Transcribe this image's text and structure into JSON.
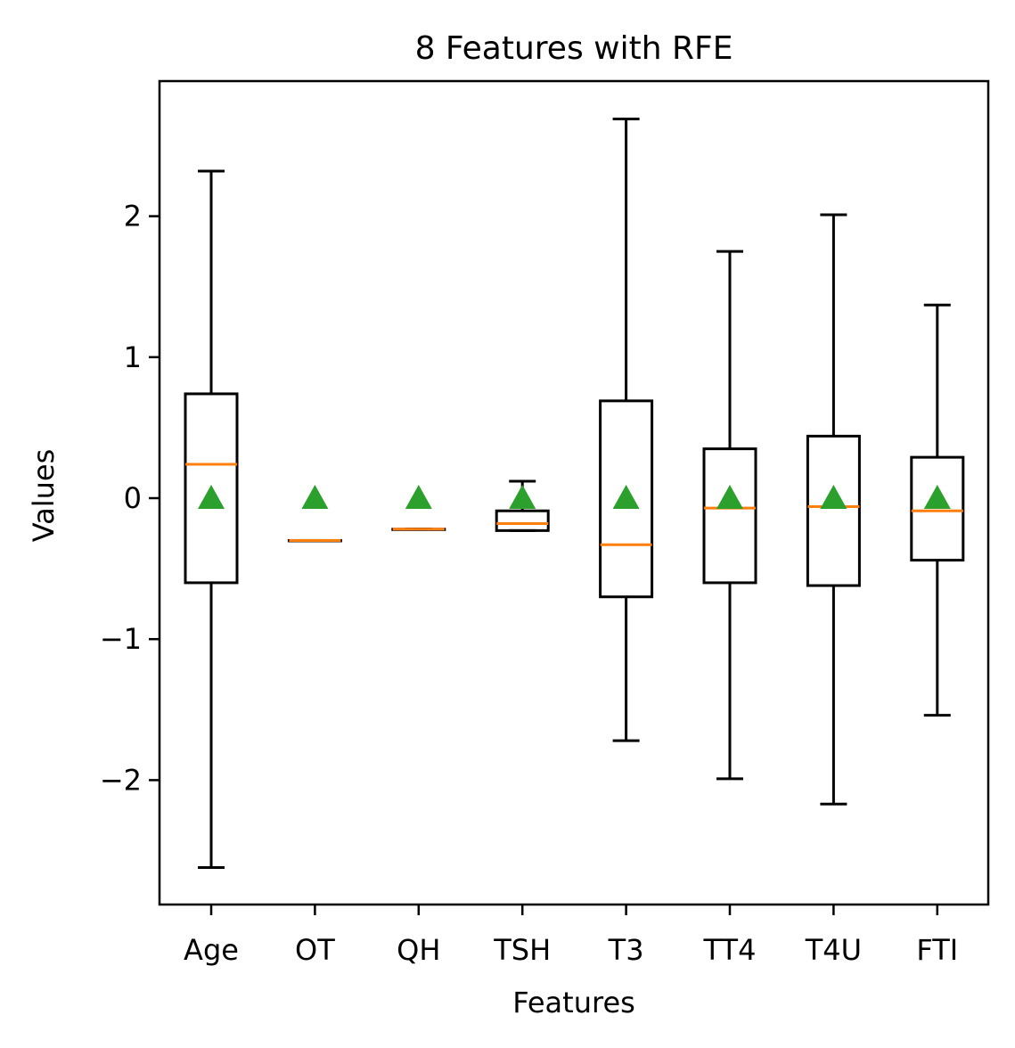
{
  "chart_data": {
    "type": "box",
    "title": "8 Features with RFE",
    "xlabel": "Features",
    "ylabel": "Values",
    "categories": [
      "Age",
      "OT",
      "QH",
      "TSH",
      "T3",
      "TT4",
      "T4U",
      "FTI"
    ],
    "y_ticks": [
      -2,
      -1,
      0,
      1,
      2
    ],
    "y_tick_labels": [
      "−2",
      "−1",
      "0",
      "1",
      "2"
    ],
    "ylim": [
      -2.9,
      2.97
    ],
    "boxes": [
      {
        "label": "Age",
        "whisker_low": -2.62,
        "q1": -0.6,
        "median": 0.24,
        "q3": 0.74,
        "whisker_high": 2.32,
        "mean": 0.0
      },
      {
        "label": "OT",
        "whisker_low": -0.3,
        "q1": -0.3,
        "median": -0.3,
        "q3": -0.3,
        "whisker_high": -0.3,
        "mean": 0.0
      },
      {
        "label": "QH",
        "whisker_low": -0.22,
        "q1": -0.22,
        "median": -0.22,
        "q3": -0.22,
        "whisker_high": -0.22,
        "mean": 0.0
      },
      {
        "label": "TSH",
        "whisker_low": -0.23,
        "q1": -0.23,
        "median": -0.18,
        "q3": -0.09,
        "whisker_high": 0.12,
        "mean": 0.0
      },
      {
        "label": "T3",
        "whisker_low": -1.72,
        "q1": -0.7,
        "median": -0.33,
        "q3": 0.69,
        "whisker_high": 2.69,
        "mean": 0.0
      },
      {
        "label": "TT4",
        "whisker_low": -1.99,
        "q1": -0.6,
        "median": -0.07,
        "q3": 0.35,
        "whisker_high": 1.75,
        "mean": 0.0
      },
      {
        "label": "T4U",
        "whisker_low": -2.17,
        "q1": -0.62,
        "median": -0.06,
        "q3": 0.44,
        "whisker_high": 2.01,
        "mean": 0.0
      },
      {
        "label": "FTI",
        "whisker_low": -1.54,
        "q1": -0.44,
        "median": -0.09,
        "q3": 0.29,
        "whisker_high": 1.37,
        "mean": 0.0
      }
    ],
    "colors": {
      "box": "#000000",
      "median": "#ff7f0e",
      "mean_marker": "#2ca02c"
    },
    "mean_marker_shape": "triangle",
    "grid": false,
    "legend": "none"
  }
}
